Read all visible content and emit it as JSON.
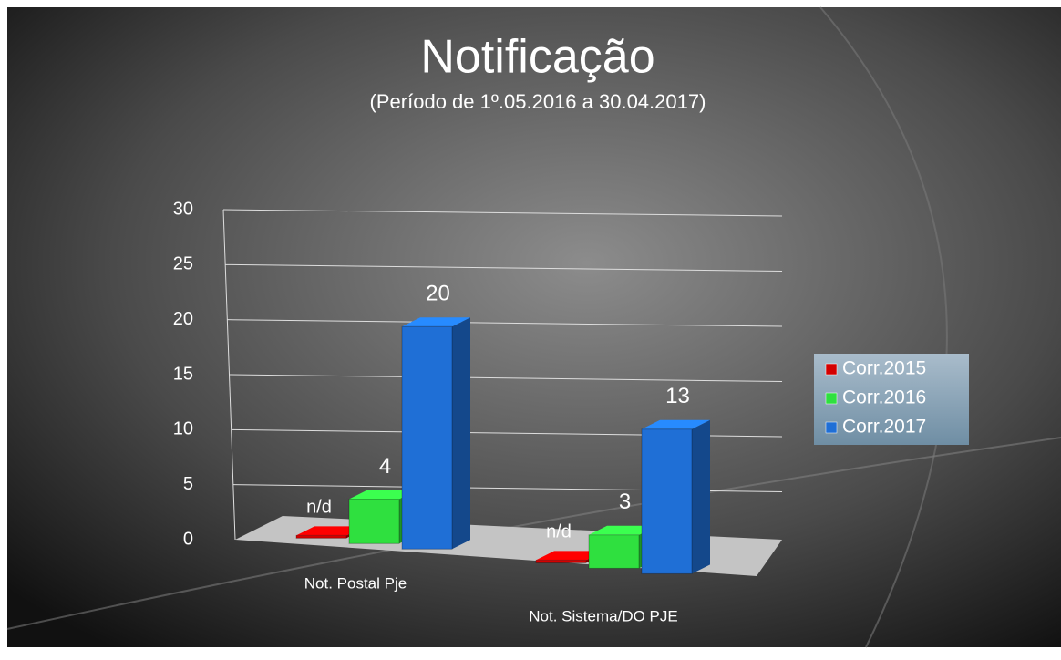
{
  "chart_data": {
    "type": "bar3d",
    "title": "Notificação",
    "subtitle": "(Período de 1º.05.2016  a  30.04.2017)",
    "categories": [
      "Not. Postal Pje",
      "Not. Sistema/DO PJE"
    ],
    "series": [
      {
        "name": "Corr.2015",
        "color": "#d40000",
        "values": [
          null,
          null
        ],
        "value_labels": [
          "n/d",
          "n/d"
        ]
      },
      {
        "name": "Corr.2016",
        "color": "#2fe03f",
        "values": [
          4,
          3
        ]
      },
      {
        "name": "Corr.2017",
        "color": "#1f6fd6",
        "values": [
          20,
          13
        ]
      }
    ],
    "ylim": [
      0,
      30
    ],
    "yticks": [
      0,
      5,
      10,
      15,
      20,
      25,
      30
    ],
    "grid": true,
    "legend": "right"
  }
}
